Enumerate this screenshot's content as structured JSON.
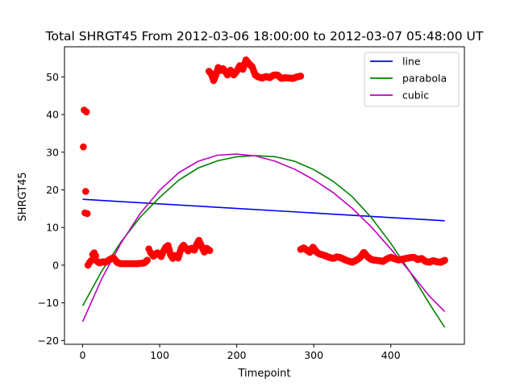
{
  "chart_data": {
    "type": "scatter",
    "title": "Total SHRGT45 From 2012-03-06 18:00:00 to 2012-03-07 05:48:00 UT",
    "xlabel": "Timepoint",
    "ylabel": "SHRGT45",
    "xlim": [
      -23.5,
      495.5
    ],
    "ylim": [
      -21,
      58
    ],
    "xticks": [
      0,
      100,
      200,
      300,
      400
    ],
    "yticks": [
      -20,
      -10,
      0,
      10,
      20,
      30,
      40,
      50
    ],
    "legend_position": "top-right",
    "scatter_color": "#ff0000",
    "scatter_anchors": [
      [
        1,
        31.4
      ],
      [
        2,
        41.2
      ],
      [
        3,
        13.9
      ],
      [
        4,
        19.6
      ],
      [
        5,
        40.7
      ],
      [
        6,
        13.7
      ],
      [
        7,
        0.0
      ],
      [
        9,
        0.7
      ],
      [
        11,
        1.2
      ],
      [
        13,
        2.8
      ],
      [
        15,
        3.3
      ],
      [
        17,
        2.5
      ],
      [
        19,
        1.0
      ],
      [
        22,
        0.6
      ],
      [
        26,
        0.9
      ],
      [
        30,
        0.8
      ],
      [
        35,
        1.5
      ],
      [
        40,
        2.0
      ],
      [
        45,
        0.7
      ],
      [
        50,
        0.4
      ],
      [
        60,
        0.4
      ],
      [
        70,
        0.4
      ],
      [
        80,
        0.6
      ],
      [
        84,
        1.3
      ],
      [
        86,
        4.3
      ],
      [
        88,
        3.4
      ],
      [
        92,
        2.4
      ],
      [
        97,
        3.3
      ],
      [
        102,
        2.3
      ],
      [
        105,
        3.7
      ],
      [
        108,
        4.8
      ],
      [
        111,
        5.2
      ],
      [
        114,
        2.8
      ],
      [
        117,
        1.8
      ],
      [
        120,
        2.6
      ],
      [
        124,
        1.9
      ],
      [
        128,
        4.5
      ],
      [
        131,
        5.3
      ],
      [
        134,
        4.5
      ],
      [
        137,
        3.8
      ],
      [
        141,
        4.5
      ],
      [
        145,
        4.0
      ],
      [
        148,
        5.5
      ],
      [
        151,
        6.6
      ],
      [
        154,
        5.2
      ],
      [
        158,
        3.5
      ],
      [
        161,
        4.5
      ],
      [
        165,
        3.9
      ]
    ],
    "scatter_anchors_2": [
      [
        164,
        51.5
      ],
      [
        167,
        50.8
      ],
      [
        170,
        49.0
      ],
      [
        173,
        50.5
      ],
      [
        176,
        52.5
      ],
      [
        179,
        51.7
      ],
      [
        182,
        52.2
      ],
      [
        185,
        51.5
      ],
      [
        188,
        50.5
      ],
      [
        192,
        51.8
      ],
      [
        196,
        50.5
      ],
      [
        200,
        51.5
      ],
      [
        204,
        53.0
      ],
      [
        208,
        52.0
      ],
      [
        212,
        54.5
      ],
      [
        216,
        53.5
      ],
      [
        220,
        52.7
      ],
      [
        224,
        50.5
      ],
      [
        228,
        50.0
      ],
      [
        233,
        49.7
      ],
      [
        238,
        50.1
      ],
      [
        243,
        49.8
      ],
      [
        248,
        50.5
      ],
      [
        253,
        50.5
      ],
      [
        258,
        49.6
      ],
      [
        263,
        49.8
      ],
      [
        268,
        49.7
      ],
      [
        273,
        49.6
      ],
      [
        278,
        50.0
      ],
      [
        283,
        50.2
      ]
    ],
    "scatter_anchors_3": [
      [
        283,
        4.2
      ],
      [
        287,
        4.6
      ],
      [
        291,
        4.0
      ],
      [
        295,
        3.4
      ],
      [
        299,
        4.8
      ],
      [
        303,
        3.6
      ],
      [
        307,
        3.0
      ],
      [
        311,
        2.8
      ],
      [
        315,
        2.5
      ],
      [
        320,
        2.1
      ],
      [
        325,
        1.8
      ],
      [
        330,
        2.2
      ],
      [
        335,
        2.0
      ],
      [
        340,
        1.5
      ],
      [
        345,
        1.1
      ],
      [
        350,
        0.8
      ],
      [
        355,
        1.3
      ],
      [
        360,
        2.0
      ],
      [
        365,
        3.4
      ],
      [
        370,
        2.2
      ],
      [
        375,
        1.5
      ],
      [
        380,
        1.3
      ],
      [
        385,
        1.2
      ],
      [
        390,
        1.0
      ],
      [
        395,
        1.7
      ],
      [
        400,
        2.1
      ],
      [
        405,
        1.7
      ],
      [
        410,
        1.4
      ],
      [
        415,
        1.6
      ],
      [
        420,
        1.8
      ],
      [
        425,
        2.0
      ],
      [
        430,
        2.1
      ],
      [
        435,
        1.5
      ],
      [
        440,
        1.8
      ],
      [
        445,
        1.0
      ],
      [
        450,
        0.8
      ],
      [
        455,
        1.2
      ],
      [
        460,
        0.9
      ],
      [
        465,
        0.8
      ],
      [
        470,
        1.3
      ]
    ],
    "series": [
      {
        "name": "line",
        "color": "#0000ff",
        "x": [
          0,
          470
        ],
        "y": [
          17.5,
          11.8
        ]
      },
      {
        "name": "parabola",
        "color": "#008000",
        "x": [
          0,
          25,
          50,
          75,
          100,
          125,
          150,
          175,
          200,
          225,
          250,
          275,
          300,
          325,
          350,
          375,
          400,
          425,
          450,
          470
        ],
        "y": [
          -10.8,
          -1.5,
          6.2,
          12.8,
          18.0,
          22.6,
          25.8,
          27.7,
          28.8,
          29.1,
          28.8,
          27.6,
          25.4,
          22.3,
          18.2,
          12.6,
          5.8,
          -1.8,
          -10.2,
          -16.5
        ]
      },
      {
        "name": "cubic",
        "color": "#bf00bf",
        "x": [
          0,
          25,
          50,
          75,
          100,
          125,
          150,
          175,
          200,
          225,
          250,
          275,
          300,
          325,
          350,
          375,
          400,
          425,
          450,
          470
        ],
        "y": [
          -15.0,
          -3.5,
          5.9,
          13.8,
          19.9,
          24.6,
          27.6,
          29.2,
          29.5,
          29.0,
          27.6,
          25.5,
          22.7,
          19.3,
          15.1,
          10.1,
          4.3,
          -1.8,
          -8.2,
          -12.3
        ]
      }
    ]
  }
}
